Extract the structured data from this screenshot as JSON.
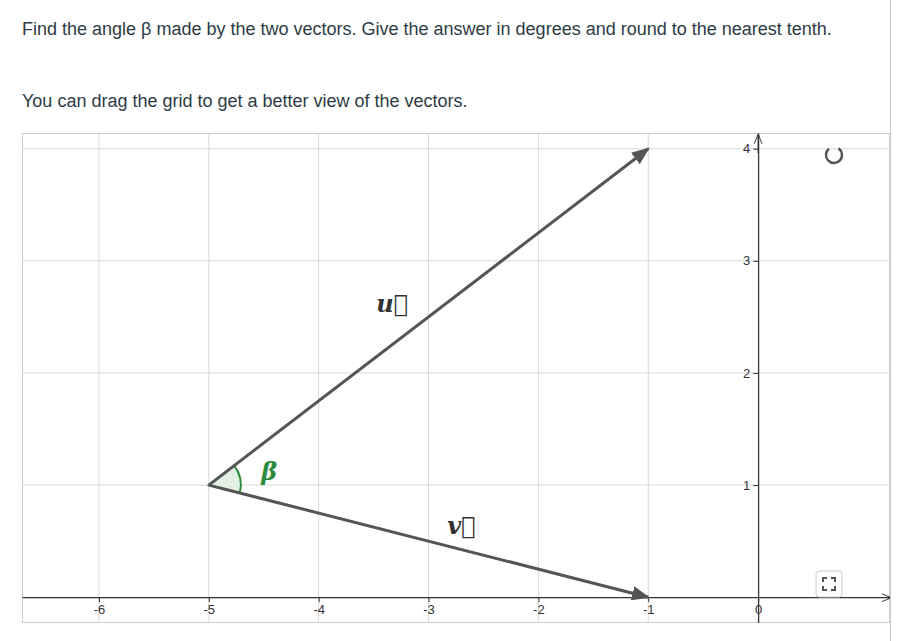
{
  "chart_data": {
    "type": "vector",
    "title": "Find the angle β made by the two vectors. Give the answer in degrees and round to the nearest tenth.",
    "subtitle": "You can drag the grid to get a better view of the vectors.",
    "xlim": [
      -6.7,
      1.2
    ],
    "ylim": [
      -0.23,
      4.14
    ],
    "xticks": [
      -6,
      -5,
      -4,
      -3,
      -2,
      -1,
      0
    ],
    "yticks": [
      1,
      2,
      3,
      4
    ],
    "grid": true,
    "series": [
      {
        "color": "#555555",
        "x": [
          -5,
          -1
        ],
        "values": [
          1,
          4
        ]
      },
      {
        "color": "#555555",
        "x": [
          -5,
          -1
        ],
        "values": [
          1,
          0
        ]
      }
    ],
    "annotations": [
      {
        "text": "u⃗",
        "x": -3.33,
        "y": 2.6,
        "color": "#333333"
      },
      {
        "text": "v⃗",
        "x": -2.7,
        "y": 0.62,
        "color": "#333333"
      },
      {
        "text": "β",
        "x": -4.45,
        "y": 1.1,
        "color": "#2e8b3e"
      }
    ]
  }
}
